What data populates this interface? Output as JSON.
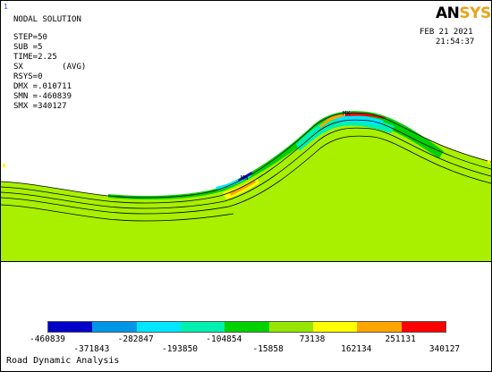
{
  "window_number": "1",
  "header": {
    "title": "NODAL SOLUTION",
    "lines": [
      "STEP=50",
      "SUB =5",
      "TIME=2.25",
      "SX        (AVG)",
      "RSYS=0",
      "DMX =.010711",
      "SMN =-460839",
      "SMX =340127"
    ]
  },
  "logo": {
    "part1": "AN",
    "part2": "SYS"
  },
  "datetime": {
    "date": "FEB 21 2021",
    "time": "21:54:37"
  },
  "markers": {
    "min": "MN",
    "max": "MX"
  },
  "legend": {
    "colors": [
      "#0000c8",
      "#0096e8",
      "#00e6ff",
      "#00f0b0",
      "#00d200",
      "#96e600",
      "#ffff00",
      "#ffa500",
      "#ff0000"
    ],
    "labels_top": [
      "-460839",
      "-282847",
      "-104854",
      "73138",
      "251131"
    ],
    "labels_bottom": [
      "-371843",
      "-193850",
      "-15858",
      "162134",
      "340127"
    ]
  },
  "footer": {
    "title": "Road Dynamic Analysis"
  },
  "colors": {
    "soil": "#a8f000",
    "band_green": "#00d200",
    "band_mint": "#00f0b0",
    "band_cyan": "#00e6ff",
    "band_yellow": "#ffff00",
    "band_orange": "#ffa500",
    "band_red": "#ff0000"
  }
}
